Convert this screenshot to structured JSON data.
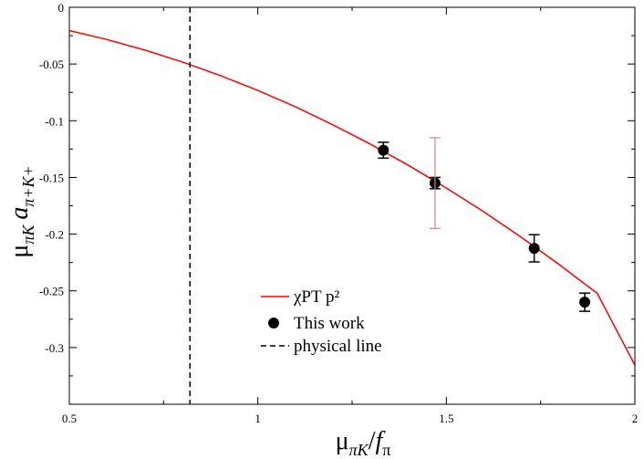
{
  "chart_data": {
    "type": "line",
    "title": "",
    "xlabel": {
      "base": "μ",
      "base_sub": "πK",
      "slash": "/",
      "f": "f",
      "f_sub": "π"
    },
    "ylabel": {
      "mu": "μ",
      "mu_sub": "πK",
      "a": "a",
      "a_sub": "π+K+"
    },
    "xlim": [
      0.5,
      2.0
    ],
    "ylim": [
      -0.35,
      0.0
    ],
    "x_ticks": [
      {
        "value": 0.5,
        "label": "0.5"
      },
      {
        "value": 1.0,
        "label": "1"
      },
      {
        "value": 1.5,
        "label": "1.5"
      },
      {
        "value": 2.0,
        "label": "2"
      }
    ],
    "y_ticks": [
      {
        "value": 0.0,
        "label": "0"
      },
      {
        "value": -0.05,
        "label": "-0.05"
      },
      {
        "value": -0.1,
        "label": "-0.1"
      },
      {
        "value": -0.15,
        "label": "-0.15"
      },
      {
        "value": -0.2,
        "label": "-0.2"
      },
      {
        "value": -0.25,
        "label": "-0.25"
      },
      {
        "value": -0.3,
        "label": "-0.3"
      }
    ],
    "series": [
      {
        "name": "χPT  p²",
        "kind": "line",
        "color": "#ff0000",
        "x": [
          0.5,
          0.6,
          0.7,
          0.8,
          0.9,
          1.0,
          1.1,
          1.2,
          1.3,
          1.4,
          1.5,
          1.6,
          1.7,
          1.8,
          1.9,
          2.0
        ],
        "y": [
          -0.0205,
          -0.0284,
          -0.0377,
          -0.0482,
          -0.0601,
          -0.0733,
          -0.0878,
          -0.1037,
          -0.1209,
          -0.1394,
          -0.1593,
          -0.1805,
          -0.2031,
          -0.227,
          -0.2522,
          -0.3155
        ]
      },
      {
        "name": "This work",
        "kind": "points",
        "color": "#000000",
        "x": [
          1.333,
          1.47,
          1.733,
          1.867
        ],
        "y": [
          -0.126,
          -0.155,
          -0.2125,
          -0.26
        ],
        "yerr": [
          0.007,
          0.005,
          0.012,
          0.008
        ]
      },
      {
        "name": "",
        "kind": "errorbar",
        "color": "#c78a85",
        "x": [
          1.47
        ],
        "y_low": [
          -0.195
        ],
        "y_high": [
          -0.115
        ]
      },
      {
        "name": "physical line",
        "kind": "vline",
        "color": "#000000",
        "x": 0.82
      }
    ],
    "legend": {
      "position": "bottom-center",
      "entries": [
        {
          "label": "χPT  p²",
          "symbol": "line",
          "color": "#ff0000"
        },
        {
          "label": "This work",
          "symbol": "circle",
          "color": "#000000"
        },
        {
          "label": "physical line",
          "symbol": "dash",
          "color": "#000000"
        }
      ]
    }
  }
}
